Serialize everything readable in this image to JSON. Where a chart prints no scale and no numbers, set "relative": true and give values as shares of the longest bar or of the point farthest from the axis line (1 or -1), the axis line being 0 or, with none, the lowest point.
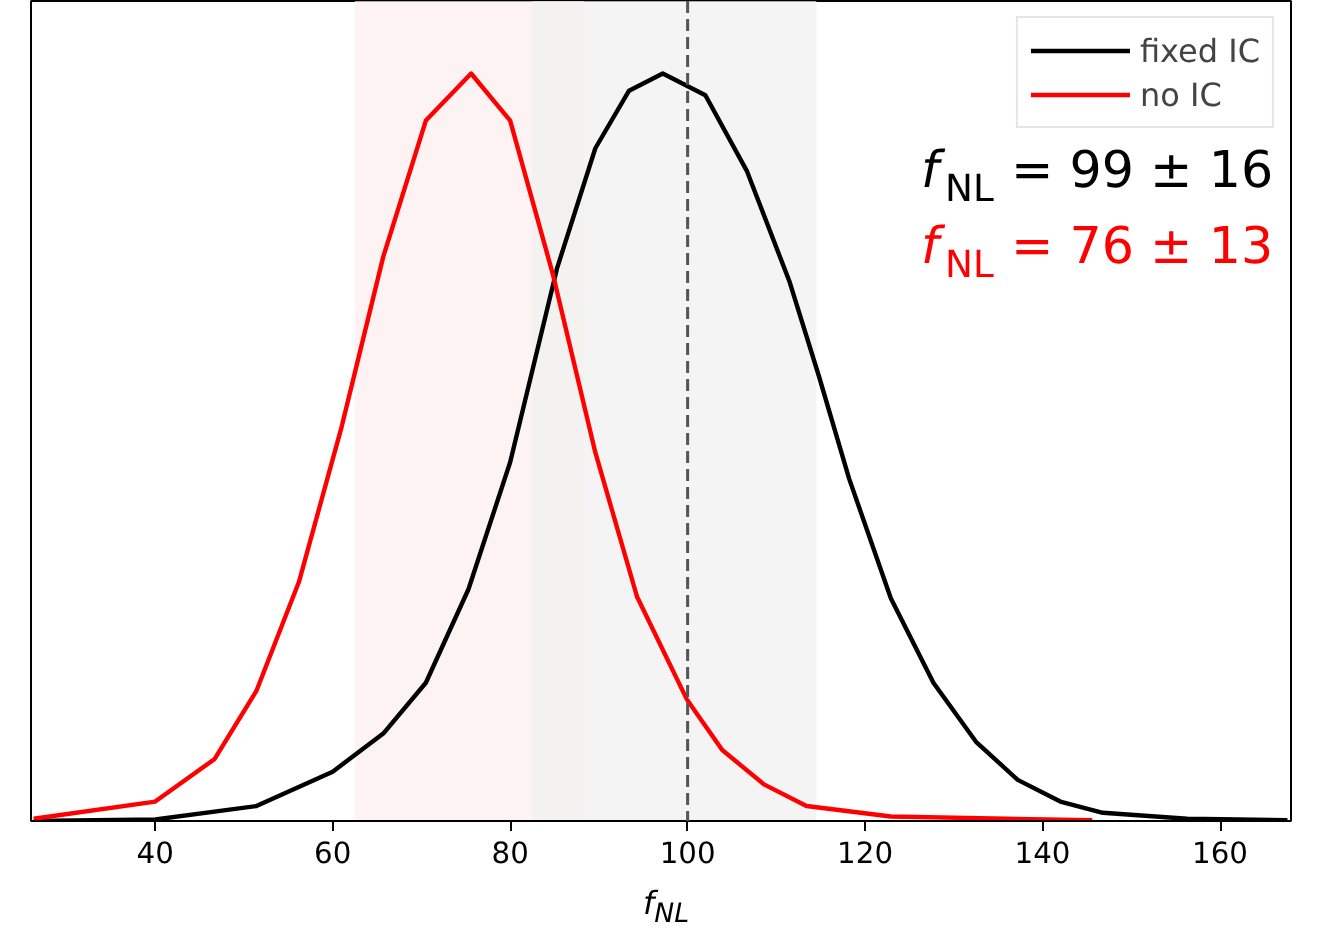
{
  "chart_data": {
    "type": "line",
    "relative": true,
    "xlabel": "f$_{NL}$",
    "xlim": [
      26,
      168
    ],
    "xticks": [
      40,
      60,
      80,
      100,
      120,
      140,
      160
    ],
    "x": [
      26.3,
      40,
      51.4,
      60,
      65.7,
      70.5,
      75.3,
      80,
      85.3,
      89.6,
      93.4,
      97.2,
      102,
      106.7,
      111.5,
      114.8,
      118.2,
      122.9,
      127.7,
      132.5,
      137.2,
      142,
      146.8,
      156.3,
      167.6
    ],
    "series": [
      {
        "name": "fixed IC",
        "color": "#000000",
        "values": [
          0,
          0.002,
          0.02,
          0.066,
          0.117,
          0.185,
          0.31,
          0.48,
          0.74,
          0.9,
          0.977,
          1,
          0.971,
          0.869,
          0.721,
          0.595,
          0.458,
          0.298,
          0.185,
          0.106,
          0.055,
          0.026,
          0.011,
          0.003,
          0.001
        ]
      },
      {
        "name": "no IC",
        "color": "#ff0000",
        "x": [
          26.3,
          40,
          46.7,
          51.4,
          56.2,
          61,
          65.7,
          70.5,
          75.6,
          80,
          84.8,
          89.6,
          94.3,
          99.9,
          103.9,
          108.6,
          113.4,
          122.9,
          145.6
        ],
        "values": [
          0.003,
          0.026,
          0.083,
          0.174,
          0.32,
          0.527,
          0.755,
          0.937,
          1,
          0.937,
          0.732,
          0.493,
          0.3,
          0.163,
          0.095,
          0.049,
          0.02,
          0.006,
          0.001
        ]
      }
    ],
    "bands": [
      {
        "axis": "x",
        "from": 62.5,
        "to": 88.3,
        "color": "#fdeeee"
      },
      {
        "axis": "x",
        "from": 82.5,
        "to": 114.5,
        "color": "#efefef"
      }
    ],
    "ref_lines": [
      {
        "axis": "x",
        "value": 100,
        "color": "#555555",
        "line_style": "dashed"
      }
    ],
    "annotations": [
      "f$_{NL}$ = 99 ± 16",
      "f$_{NL}$ = 76 ± 13"
    ],
    "legend": "top right",
    "line_style": "solid",
    "marker": "none",
    "grid": false,
    "tick_labels": "x"
  }
}
